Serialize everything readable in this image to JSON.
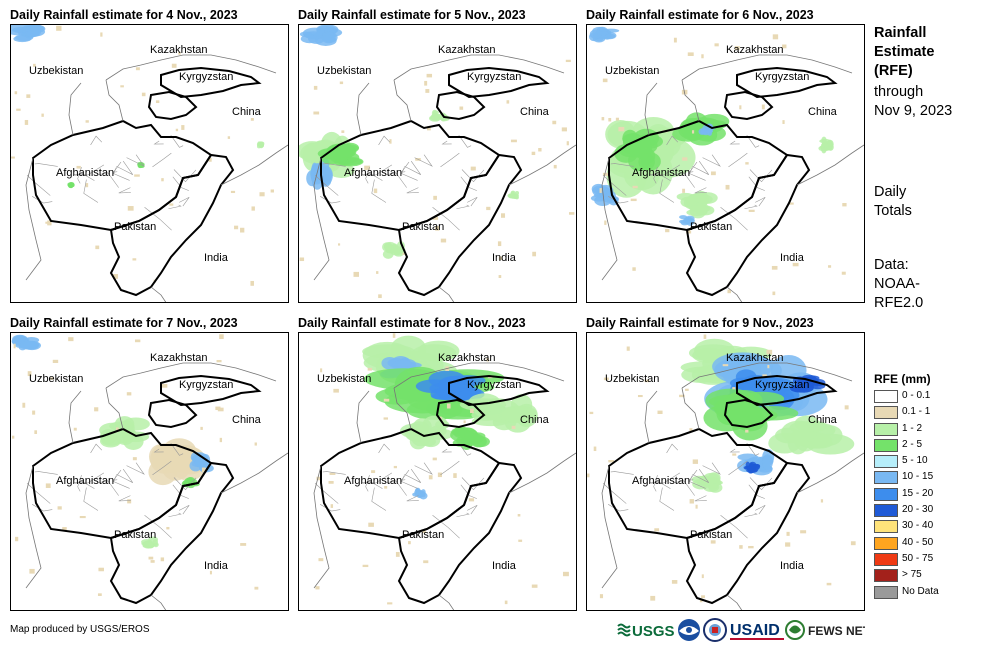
{
  "panels": [
    {
      "title": "Daily Rainfall estimate for 4 Nov., 2023"
    },
    {
      "title": "Daily Rainfall estimate for 5 Nov., 2023"
    },
    {
      "title": "Daily Rainfall estimate for 6 Nov., 2023"
    },
    {
      "title": "Daily Rainfall estimate for 7 Nov., 2023"
    },
    {
      "title": "Daily Rainfall estimate for 8 Nov., 2023"
    },
    {
      "title": "Daily Rainfall estimate for 9 Nov., 2023"
    }
  ],
  "country_labels": {
    "kazakhstan": "Kazakhstan",
    "uzbekistan": "Uzbekistan",
    "kyrgyzstan": "Kyrgyzstan",
    "china": "China",
    "afghanistan": "Afghanistan",
    "pakistan": "Pakistan",
    "india": "India"
  },
  "sidebar": {
    "title": "Rainfall Estimate (RFE)",
    "title_line1": "Rainfall",
    "title_line2": "Estimate",
    "title_line3": "(RFE)",
    "through_line1": "through",
    "through_line2": "Nov 9, 2023",
    "totals_line1": "Daily",
    "totals_line2": "Totals",
    "data_line1": "Data:",
    "data_line2": "NOAA-",
    "data_line3": "RFE2.0"
  },
  "legend": {
    "title": "RFE (mm)",
    "items": [
      {
        "label": "0 - 0.1",
        "color": "#ffffff"
      },
      {
        "label": "0.1 - 1",
        "color": "#e8d9b5"
      },
      {
        "label": "1 - 2",
        "color": "#b7f0a8"
      },
      {
        "label": "2 - 5",
        "color": "#74e26a"
      },
      {
        "label": "5 - 10",
        "color": "#b6eefa"
      },
      {
        "label": "10 - 15",
        "color": "#79b8f2"
      },
      {
        "label": "15 - 20",
        "color": "#3d8ded"
      },
      {
        "label": "20 - 30",
        "color": "#1f5ad6"
      },
      {
        "label": "30 - 40",
        "color": "#ffe37a"
      },
      {
        "label": "40 - 50",
        "color": "#ffa51f"
      },
      {
        "label": "50 - 75",
        "color": "#ef3a14"
      },
      {
        "label": "> 75",
        "color": "#a3211b"
      },
      {
        "label": "No Data",
        "color": "#9a9a9a"
      }
    ]
  },
  "credit": "Map produced by USGS/EROS",
  "logos": {
    "usgs": "USGS",
    "usaid": "USAID",
    "fewsnet": "FEWS NET"
  }
}
